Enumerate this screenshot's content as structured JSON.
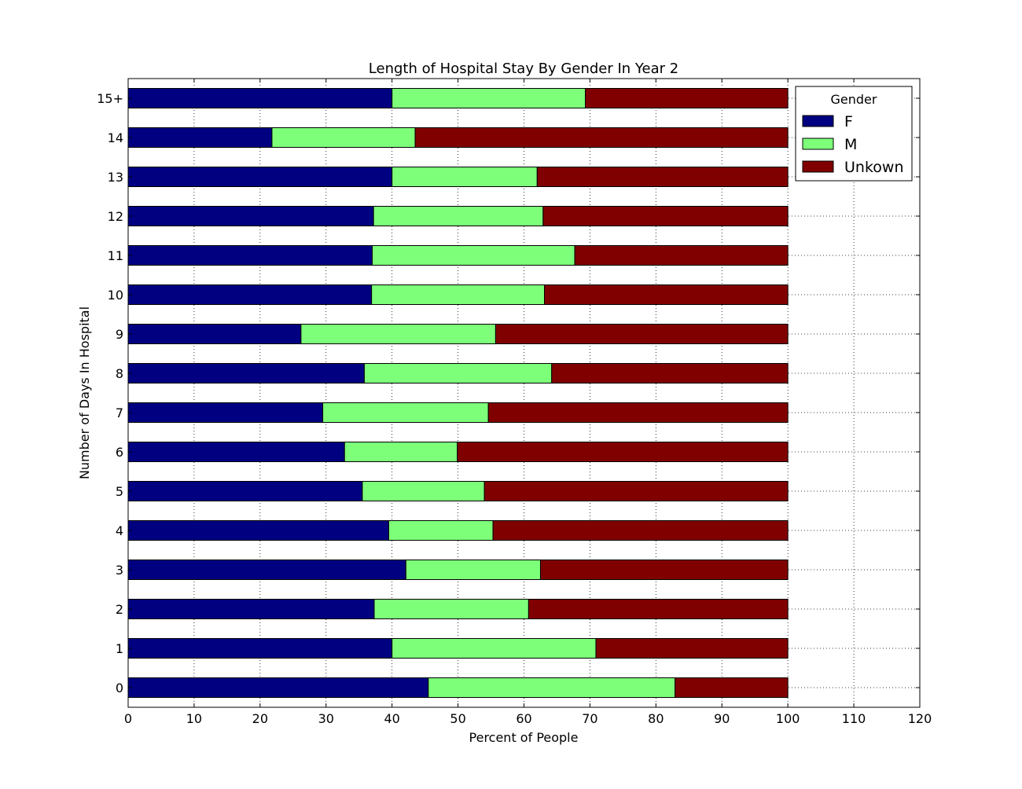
{
  "chart_data": {
    "type": "bar",
    "orientation": "horizontal",
    "stacked": true,
    "title": "Length of Hospital Stay By Gender In Year 2",
    "xlabel": "Percent of People",
    "ylabel": "Number of Days In Hospital",
    "xlim": [
      0,
      120
    ],
    "xticks": [
      "0",
      "10",
      "20",
      "30",
      "40",
      "50",
      "60",
      "70",
      "80",
      "90",
      "100",
      "110",
      "120"
    ],
    "categories": [
      "0",
      "1",
      "2",
      "3",
      "4",
      "5",
      "6",
      "7",
      "8",
      "9",
      "10",
      "11",
      "12",
      "13",
      "14",
      "15+"
    ],
    "series": [
      {
        "name": "F",
        "color": "#000080",
        "values": [
          45.5,
          40.0,
          37.3,
          42.1,
          39.5,
          35.5,
          32.8,
          29.5,
          35.8,
          26.2,
          36.9,
          37.0,
          37.2,
          40.0,
          21.8,
          40.0
        ]
      },
      {
        "name": "M",
        "color": "#7dff7a",
        "values": [
          37.4,
          30.9,
          23.4,
          20.4,
          15.8,
          18.5,
          17.1,
          25.1,
          28.4,
          29.5,
          26.2,
          30.7,
          25.7,
          22.0,
          21.7,
          29.3
        ]
      },
      {
        "name": "Unkown",
        "color": "#800000",
        "values": [
          17.1,
          29.1,
          39.3,
          37.5,
          44.7,
          46.0,
          50.1,
          45.4,
          35.8,
          44.3,
          36.9,
          32.3,
          37.1,
          38.0,
          56.5,
          30.7
        ]
      }
    ],
    "legend": {
      "title": "Gender",
      "position": "top-right"
    },
    "grid": true
  }
}
